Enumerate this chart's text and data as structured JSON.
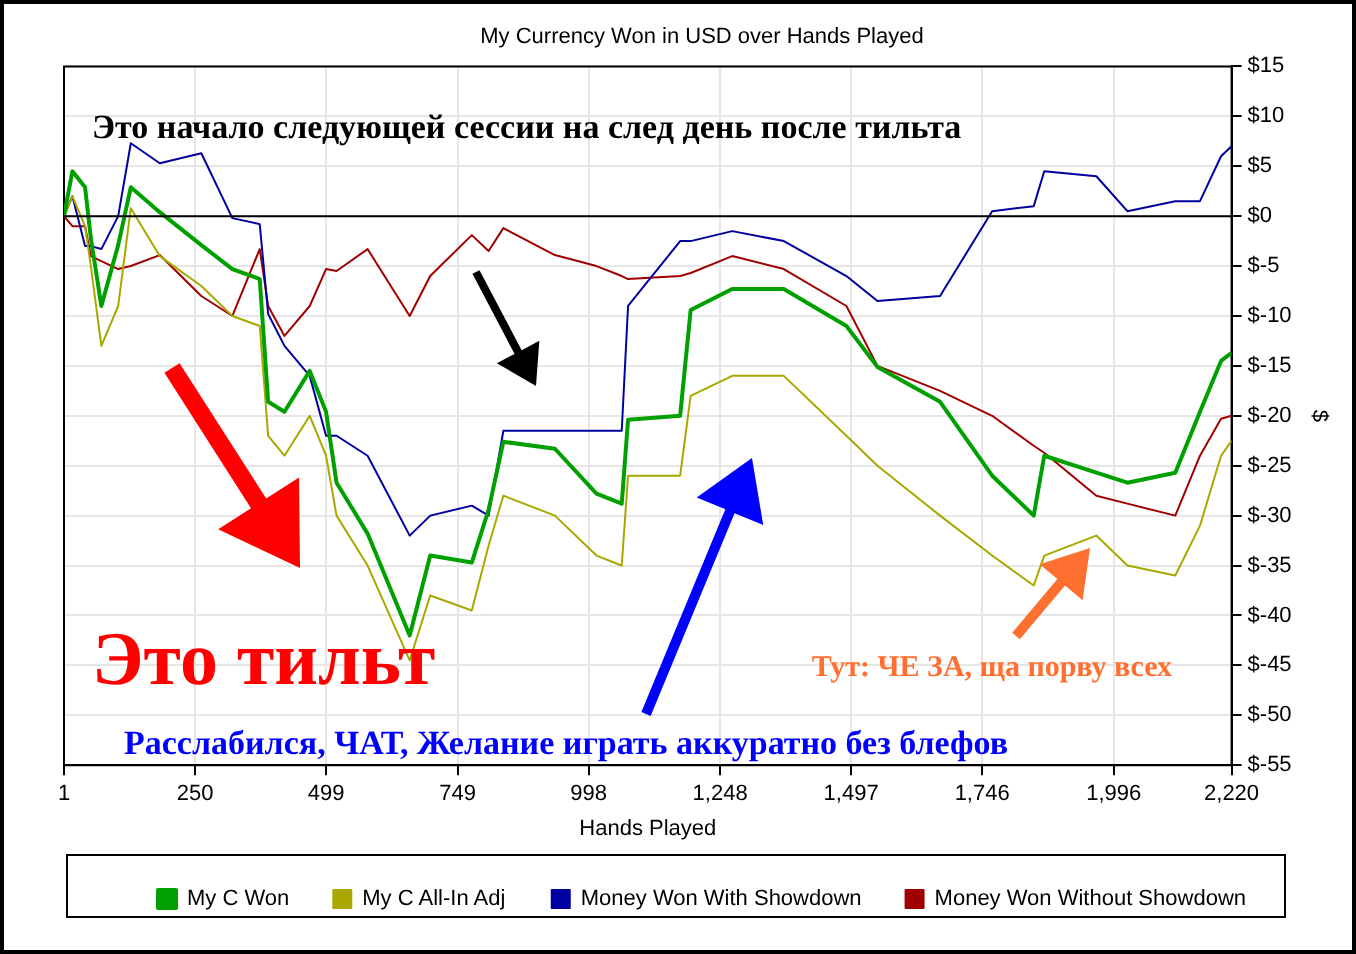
{
  "chart_data": {
    "type": "line",
    "title": "My Currency Won in USD over Hands Played",
    "xlabel": "Hands Played",
    "ylabel": "$",
    "x": [
      1,
      17,
      41,
      52,
      72,
      104,
      128,
      183,
      262,
      321,
      373,
      389,
      420,
      468,
      499,
      519,
      578,
      658,
      697,
      776,
      808,
      836,
      934,
      1013,
      1061,
      1073,
      1172,
      1192,
      1271,
      1369,
      1488,
      1547,
      1666,
      1765,
      1844,
      1864,
      1963,
      2022,
      2113,
      2160,
      2200,
      2220
    ],
    "series": [
      {
        "name": "My C Won",
        "color": "#00a000",
        "values": [
          0,
          4.5,
          2.9,
          -2.2,
          -9,
          -2.9,
          2.9,
          0.4,
          -2.9,
          -5.3,
          -6.3,
          -18.6,
          -19.6,
          -15.5,
          -19.6,
          -26.7,
          -31.8,
          -42,
          -34,
          -34.7,
          -29.4,
          -22.6,
          -23.3,
          -27.8,
          -28.8,
          -20.4,
          -20,
          -9.4,
          -7.3,
          -7.3,
          -11,
          -15.1,
          -18.6,
          -26,
          -30,
          -24,
          -25.7,
          -26.7,
          -25.7,
          -19.6,
          -14.5,
          -13.7
        ]
      },
      {
        "name": "My C All-In Adj",
        "color": "#a8a800",
        "values": [
          0,
          2,
          -1,
          -5,
          -13,
          -9,
          0.8,
          -4,
          -7,
          -10,
          -11,
          -22,
          -24,
          -20,
          -24,
          -30,
          -35,
          -44.5,
          -38,
          -39.5,
          -33,
          -28,
          -30,
          -34,
          -35,
          -26,
          -26,
          -18,
          -16,
          -16,
          -22,
          -25,
          -30,
          -34,
          -37,
          -34,
          -32,
          -35,
          -36,
          -31,
          -24,
          -22.5
        ]
      },
      {
        "name": "Money Won With Showdown",
        "color": "#0000a0",
        "values": [
          0,
          2,
          -3,
          -3,
          -3.3,
          0,
          7.3,
          5.3,
          6.3,
          -0.2,
          -0.8,
          -9.8,
          -13,
          -16,
          -22,
          -22,
          -24,
          -32,
          -30,
          -29,
          -30,
          -21.5,
          -21.5,
          -21.5,
          -21.5,
          -9,
          -2.5,
          -2.5,
          -1.5,
          -2.5,
          -6,
          -8.5,
          -8,
          0.5,
          1,
          4.5,
          4,
          0.5,
          1.5,
          1.5,
          6,
          7
        ]
      },
      {
        "name": "Money Won Without Showdown",
        "color": "#a00000",
        "values": [
          0,
          -1,
          -1,
          -4,
          -4.5,
          -5.3,
          -5,
          -3.9,
          -8,
          -10,
          -3.3,
          -9,
          -12,
          -9,
          -5.3,
          -5.5,
          -3.3,
          -10,
          -6,
          -1.9,
          -3.5,
          -1.2,
          -3.9,
          -5,
          -6,
          -6.3,
          -6,
          -5.7,
          -4,
          -5.3,
          -9,
          -15,
          -17.5,
          -20,
          -23,
          -23.7,
          -28,
          -28.8,
          -30,
          -24,
          -20.3,
          -20
        ]
      }
    ],
    "xlim": [
      1,
      2220
    ],
    "xticks": [
      1,
      {
        "value": 250,
        "label": "250"
      },
      {
        "value": 499,
        "label": "499"
      },
      {
        "value": 749,
        "label": "749"
      },
      {
        "value": 998,
        "label": "998"
      },
      {
        "value": 1248,
        "label": "1,248"
      },
      {
        "value": 1497,
        "label": "1,497"
      },
      {
        "value": 1746,
        "label": "1,746"
      },
      {
        "value": 1996,
        "label": "1,996"
      },
      {
        "value": 2220,
        "label": "2,220"
      }
    ],
    "ylim": [
      -55,
      15
    ],
    "yticks": [
      {
        "value": 15,
        "label": "$15"
      },
      {
        "value": 10,
        "label": "$10"
      },
      {
        "value": 5,
        "label": "$5"
      },
      {
        "value": 0,
        "label": "$0"
      },
      {
        "value": -5,
        "label": "$-5"
      },
      {
        "value": -10,
        "label": "$-10"
      },
      {
        "value": -15,
        "label": "$-15"
      },
      {
        "value": -20,
        "label": "$-20"
      },
      {
        "value": -25,
        "label": "$-25"
      },
      {
        "value": -30,
        "label": "$-30"
      },
      {
        "value": -35,
        "label": "$-35"
      },
      {
        "value": -40,
        "label": "$-40"
      },
      {
        "value": -45,
        "label": "$-45"
      },
      {
        "value": -50,
        "label": "$-50"
      },
      {
        "value": -55,
        "label": "$-55"
      }
    ],
    "ref_lines": [
      {
        "axis": "y",
        "value": 0,
        "color": "#000000"
      }
    ],
    "grid": true,
    "legend": "bottom",
    "marker": "none",
    "line_style": "solid",
    "annotations": [
      "Это начало следующей сессии на след день после тильта",
      "Это тильт",
      "Расслабился, ЧАТ, Желание играть аккуратно без блефов",
      "Тут: ЧЕ ЗА, ща порву всех"
    ]
  }
}
